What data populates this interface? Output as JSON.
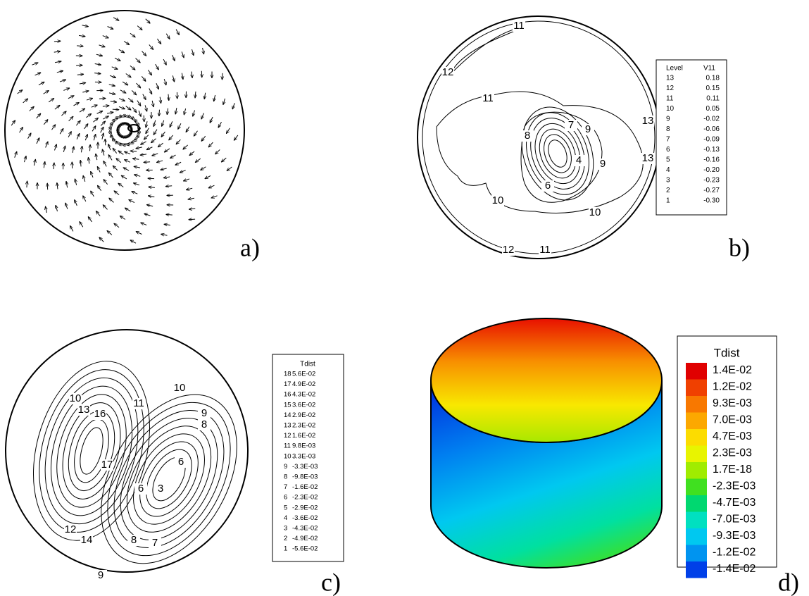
{
  "panels": [
    {
      "label": "a)"
    },
    {
      "label": "b)",
      "legend": {
        "headers": [
          "Level",
          "V11"
        ],
        "rows": [
          [
            "13",
            "0.18"
          ],
          [
            "12",
            "0.15"
          ],
          [
            "11",
            "0.11"
          ],
          [
            "10",
            "0.05"
          ],
          [
            "9",
            "-0.02"
          ],
          [
            "8",
            "-0.06"
          ],
          [
            "7",
            "-0.09"
          ],
          [
            "6",
            "-0.13"
          ],
          [
            "5",
            "-0.16"
          ],
          [
            "4",
            "-0.20"
          ],
          [
            "3",
            "-0.23"
          ],
          [
            "2",
            "-0.27"
          ],
          [
            "1",
            "-0.30"
          ]
        ]
      },
      "contour_labels": [
        "11",
        "12",
        "11",
        "13",
        "13",
        "8",
        "7",
        "9",
        "4",
        "9",
        "6",
        "10",
        "10",
        "12",
        "11"
      ]
    },
    {
      "label": "c)",
      "legend": {
        "title": "Tdist",
        "rows": [
          [
            "18",
            "5.6E-02"
          ],
          [
            "17",
            "4.9E-02"
          ],
          [
            "16",
            "4.3E-02"
          ],
          [
            "15",
            "3.6E-02"
          ],
          [
            "14",
            "2.9E-02"
          ],
          [
            "13",
            "2.3E-02"
          ],
          [
            "12",
            "1.6E-02"
          ],
          [
            "11",
            "9.8E-03"
          ],
          [
            "10",
            "3.3E-03"
          ],
          [
            "9",
            "-3.3E-03"
          ],
          [
            "8",
            "-9.8E-03"
          ],
          [
            "7",
            "-1.6E-02"
          ],
          [
            "6",
            "-2.3E-02"
          ],
          [
            "5",
            "-2.9E-02"
          ],
          [
            "4",
            "-3.6E-02"
          ],
          [
            "3",
            "-4.3E-02"
          ],
          [
            "2",
            "-4.9E-02"
          ],
          [
            "1",
            "-5.6E-02"
          ]
        ]
      },
      "contour_labels": [
        "10",
        "10",
        "13",
        "16",
        "11",
        "9",
        "8",
        "17",
        "6",
        "6",
        "3",
        "12",
        "14",
        "8",
        "7",
        "9"
      ]
    },
    {
      "label": "d)",
      "legend": {
        "title": "Tdist",
        "entries": [
          {
            "label": "1.4E-02",
            "color": "#e00000"
          },
          {
            "label": "1.2E-02",
            "color": "#f04000"
          },
          {
            "label": "9.3E-03",
            "color": "#f87800"
          },
          {
            "label": "7.0E-03",
            "color": "#fca800"
          },
          {
            "label": "4.7E-03",
            "color": "#fcdc00"
          },
          {
            "label": "2.3E-03",
            "color": "#e8f400"
          },
          {
            "label": "1.7E-18",
            "color": "#a0ec00"
          },
          {
            "label": "-2.3E-03",
            "color": "#40e020"
          },
          {
            "label": "-4.7E-03",
            "color": "#00d870"
          },
          {
            "label": "-7.0E-03",
            "color": "#00e0c0"
          },
          {
            "label": "-9.3E-03",
            "color": "#00c8f0"
          },
          {
            "label": "-1.2E-02",
            "color": "#0094f0"
          },
          {
            "label": "-1.4E-02",
            "color": "#0040e8"
          }
        ]
      }
    }
  ]
}
